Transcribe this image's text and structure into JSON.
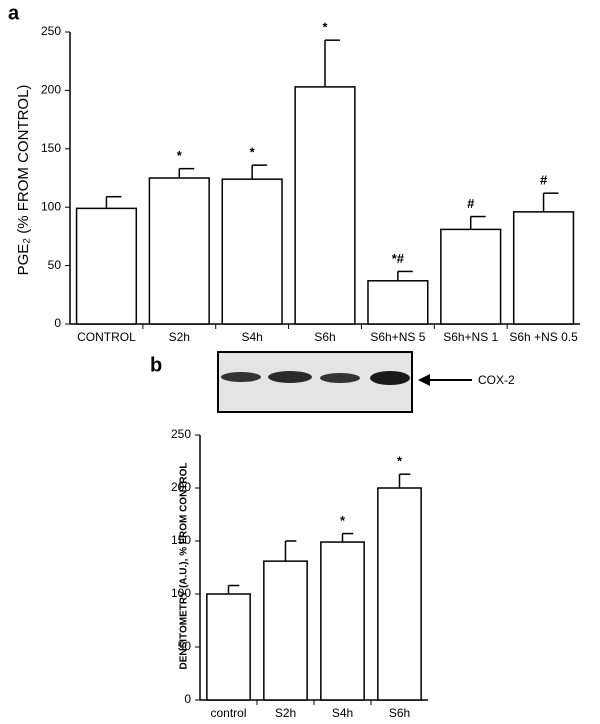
{
  "chart_data": [
    {
      "type": "bar",
      "panel_label": "a",
      "ylabel": "PGE₂ (% FROM CONTROL)",
      "categories": [
        "CONTROL",
        "S2h",
        "S4h",
        "S6h",
        "S6h+NS 5",
        "S6h+NS 1",
        "S6h +NS 0.5"
      ],
      "values": [
        99,
        125,
        124,
        203,
        37,
        81,
        96
      ],
      "errors": [
        10,
        8,
        12,
        40,
        8,
        11,
        16
      ],
      "annotations": [
        null,
        "*",
        "*",
        "*",
        "*#",
        "#",
        "#"
      ],
      "color": "#ffffff",
      "ylim": [
        0,
        250
      ],
      "yticks": [
        0,
        50,
        100,
        150,
        200,
        250
      ]
    },
    {
      "type": "bar",
      "panel_label": "b",
      "ylabel": "DENSITOMETRY (A.U.), % FROM CONTROL",
      "blot_label": "COX-2",
      "categories": [
        "control",
        "S2h",
        "S4h",
        "S6h"
      ],
      "values": [
        100,
        131,
        149,
        200
      ],
      "errors": [
        8,
        19,
        8,
        13
      ],
      "annotations": [
        null,
        null,
        "*",
        "*"
      ],
      "color": "#ffffff",
      "ylim": [
        0,
        250
      ],
      "yticks": [
        0,
        50,
        100,
        150,
        200,
        250
      ]
    }
  ]
}
